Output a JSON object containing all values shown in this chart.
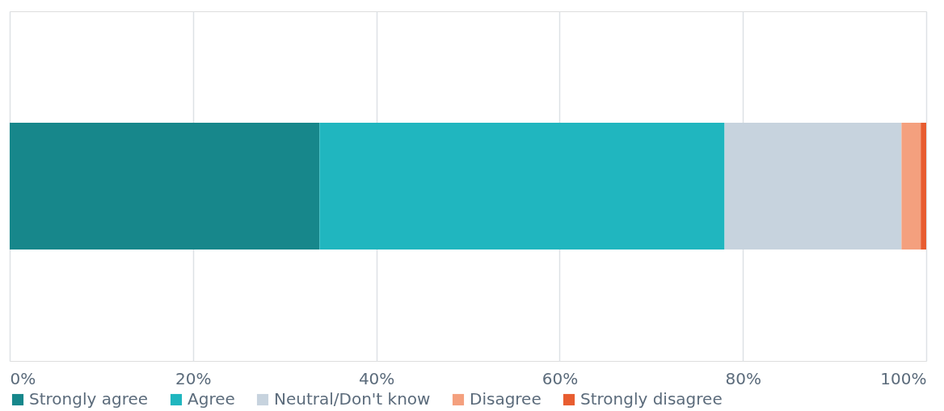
{
  "chart_data": {
    "type": "bar",
    "orientation": "horizontal",
    "stacked": true,
    "categories": [
      null
    ],
    "series": [
      {
        "name": "Strongly agree",
        "color": "#17878b",
        "values": [
          33.8
        ]
      },
      {
        "name": "Agree",
        "color": "#20b6bf",
        "values": [
          44.2
        ]
      },
      {
        "name": "Neutral/Don't know",
        "color": "#c7d3de",
        "values": [
          19.3
        ]
      },
      {
        "name": "Disagree",
        "color": "#f4a07e",
        "values": [
          2.1
        ]
      },
      {
        "name": "Strongly disagree",
        "color": "#e85d30",
        "values": [
          0.6
        ]
      }
    ],
    "xlim": [
      0,
      100
    ],
    "xticks": [
      {
        "value": 0,
        "label": "0%"
      },
      {
        "value": 20,
        "label": "20%"
      },
      {
        "value": 40,
        "label": "40%"
      },
      {
        "value": 60,
        "label": "60%"
      },
      {
        "value": 80,
        "label": "80%"
      },
      {
        "value": 100,
        "label": "100%"
      }
    ],
    "grid": "x",
    "legend": "bottom",
    "tick_labels": "x"
  }
}
